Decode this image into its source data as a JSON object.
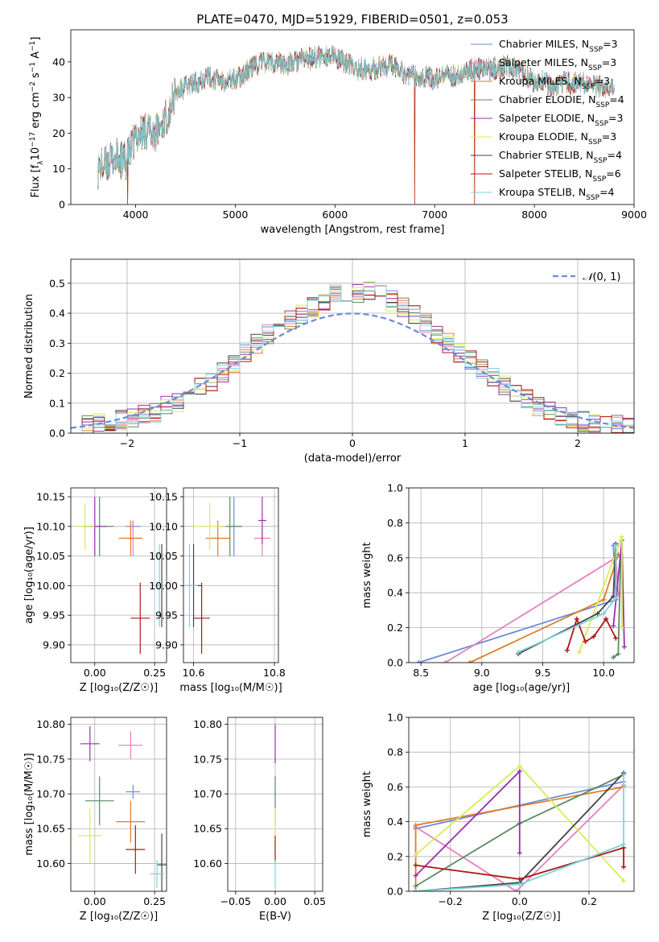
{
  "figure": {
    "title": "PLATE=0470, MJD=51929, FIBERID=0501, z=0.053",
    "colors": [
      "#6a8bd6",
      "#e77fbe",
      "#e07b2a",
      "#5a8a5e",
      "#9b2faa",
      "#d8ec54",
      "#444444",
      "#b01818",
      "#7ad4dc"
    ],
    "series_names": [
      "Chabrier MILES, N$_{SSP}$=3",
      "Salpeter MILES, N$_{SSP}$=3",
      "Kroupa MILES, N$_{SSP}$=3",
      "Chabrier ELODIE, N$_{SSP}$=4",
      "Salpeter ELODIE, N$_{SSP}$=3",
      "Kroupa ELODIE, N$_{SSP}$=3",
      "Chabrier STELIB, N$_{SSP}$=4",
      "Salpeter STELIB, N$_{SSP}$=6",
      "Kroupa STELIB, N$_{SSP}$=4"
    ],
    "series_labels": [
      {
        "pre": "Chabrier MILES, N",
        "sub": "SSP",
        "post": "=3"
      },
      {
        "pre": "Salpeter MILES, N",
        "sub": "SSP",
        "post": "=3"
      },
      {
        "pre": "Kroupa MILES, N",
        "sub": "SSP",
        "post": "=3"
      },
      {
        "pre": "Chabrier ELODIE, N",
        "sub": "SSP",
        "post": "=4"
      },
      {
        "pre": "Salpeter ELODIE, N",
        "sub": "SSP",
        "post": "=3"
      },
      {
        "pre": "Kroupa ELODIE, N",
        "sub": "SSP",
        "post": "=3"
      },
      {
        "pre": "Chabrier STELIB, N",
        "sub": "SSP",
        "post": "=4"
      },
      {
        "pre": "Salpeter STELIB, N",
        "sub": "SSP",
        "post": "=6"
      },
      {
        "pre": "Kroupa STELIB, N",
        "sub": "SSP",
        "post": "=4"
      }
    ]
  },
  "chart_data": [
    {
      "id": "spectrum",
      "type": "line",
      "title": "PLATE=0470, MJD=51929, FIBERID=0501, z=0.053",
      "xlabel": "wavelength [Angstrom, rest frame]",
      "ylabel_parts": [
        "Flux [f",
        "λ",
        "10",
        "−17",
        " erg cm",
        "−2",
        " s",
        "−1",
        " A",
        "−1",
        "]"
      ],
      "xlim": [
        3350,
        9000
      ],
      "ylim": [
        0,
        49
      ],
      "xticks": [
        4000,
        5000,
        6000,
        7000,
        8000,
        9000
      ],
      "yticks": [
        0,
        10,
        20,
        30,
        40
      ],
      "grid": false,
      "legend": "top-right",
      "x": [
        3620,
        3700,
        3800,
        3900,
        3950,
        4000,
        4100,
        4200,
        4300,
        4400,
        4500,
        4600,
        4700,
        4800,
        4900,
        5000,
        5100,
        5200,
        5300,
        5400,
        5500,
        5600,
        5700,
        5800,
        5900,
        6000,
        6100,
        6200,
        6300,
        6400,
        6500,
        6600,
        6700,
        6800,
        6900,
        7000,
        7100,
        7200,
        7300,
        7400,
        7500,
        7600,
        7700,
        7800,
        7900,
        8000,
        8100,
        8200,
        8300,
        8400,
        8500,
        8600,
        8700,
        8800
      ],
      "y": [
        10,
        11,
        13,
        12,
        15,
        19,
        21,
        20,
        24,
        31,
        33,
        34,
        36,
        35,
        35,
        35,
        37,
        39,
        40,
        40,
        39,
        40,
        41,
        41,
        42,
        41,
        40,
        38,
        38,
        38,
        39,
        39,
        37,
        36,
        36,
        35,
        36,
        36,
        37,
        38,
        38,
        38,
        39,
        38,
        37,
        34,
        35,
        32,
        34,
        34,
        34,
        33,
        33,
        34
      ],
      "dips": [
        [
          6800,
          0
        ],
        [
          7400,
          0
        ],
        [
          3920,
          0
        ]
      ]
    },
    {
      "id": "residuals",
      "type": "bar",
      "title": "",
      "xlabel": "(data-model)/error",
      "ylabel": "Normed distribution",
      "xlim": [
        -2.5,
        2.5
      ],
      "ylim": [
        0,
        0.58
      ],
      "xticks": [
        -2,
        -1,
        0,
        1,
        2
      ],
      "yticks": [
        0.0,
        0.1,
        0.2,
        0.3,
        0.4,
        0.5
      ],
      "grid": true,
      "bin_width": 0.1,
      "bin_start": -2.5,
      "values": [
        0.025,
        0.03,
        0.035,
        0.04,
        0.045,
        0.055,
        0.06,
        0.07,
        0.09,
        0.1,
        0.12,
        0.15,
        0.17,
        0.2,
        0.23,
        0.27,
        0.3,
        0.33,
        0.35,
        0.38,
        0.4,
        0.42,
        0.44,
        0.46,
        0.47,
        0.47,
        0.47,
        0.46,
        0.44,
        0.42,
        0.39,
        0.37,
        0.33,
        0.3,
        0.27,
        0.24,
        0.21,
        0.19,
        0.16,
        0.13,
        0.11,
        0.09,
        0.075,
        0.06,
        0.05,
        0.04,
        0.035,
        0.03,
        0.025,
        0.02
      ],
      "normal_curve": {
        "name": "$\\mathcal{N}(0,1)$",
        "mean": 0,
        "sigma": 1
      },
      "legend_text": "(0, 1)",
      "legend": "top-right"
    },
    {
      "id": "age-vs-Z",
      "type": "scatter",
      "xlabel": "Z [log₁₀(Z/Z☉)]",
      "ylabel": "age  [log₁₀(age/yr)]",
      "xlim": [
        -0.1,
        0.3
      ],
      "ylim": [
        9.87,
        10.165
      ],
      "xticks": [
        0.0,
        0.25
      ],
      "yticks": [
        9.9,
        9.95,
        10.0,
        10.05,
        10.1,
        10.15
      ],
      "grid": true,
      "points": [
        {
          "x": 0.16,
          "y": 10.1,
          "xerr": 0.03,
          "yerr": 0.01
        },
        {
          "x": 0.16,
          "y": 10.08,
          "xerr": 0.03,
          "yerr": 0.03
        },
        {
          "x": 0.15,
          "y": 10.08,
          "xerr": 0.05,
          "yerr": 0.03
        },
        {
          "x": 0.02,
          "y": 10.1,
          "xerr": 0.06,
          "yerr": 0.05
        },
        {
          "x": 0.0,
          "y": 10.1,
          "xerr": 0.05,
          "yerr": 0.05
        },
        {
          "x": -0.04,
          "y": 10.1,
          "xerr": 0.04,
          "yerr": 0.04
        },
        {
          "x": 0.28,
          "y": 10.0,
          "xerr": 0.02,
          "yerr": 0.07
        },
        {
          "x": 0.19,
          "y": 9.945,
          "xerr": 0.04,
          "yerr": 0.06
        },
        {
          "x": 0.27,
          "y": 10.0,
          "xerr": 0.03,
          "yerr": 0.07
        }
      ]
    },
    {
      "id": "age-vs-mass",
      "type": "scatter",
      "xlabel": "mass [log₁₀(M/M☉)]",
      "ylabel": "",
      "xlim": [
        10.575,
        10.81
      ],
      "ylim": [
        9.87,
        10.165
      ],
      "xticks": [
        10.6,
        10.8
      ],
      "yticks": [
        9.9,
        9.95,
        10.0,
        10.05,
        10.1,
        10.15
      ],
      "grid": true,
      "points": [
        {
          "x": 10.7,
          "y": 10.1,
          "xerr": 0.02,
          "yerr": 0.05
        },
        {
          "x": 10.77,
          "y": 10.08,
          "xerr": 0.02,
          "yerr": 0.03
        },
        {
          "x": 10.66,
          "y": 10.08,
          "xerr": 0.03,
          "yerr": 0.03
        },
        {
          "x": 10.69,
          "y": 10.1,
          "xerr": 0.03,
          "yerr": 0.05
        },
        {
          "x": 10.77,
          "y": 10.11,
          "xerr": 0.01,
          "yerr": 0.04
        },
        {
          "x": 10.64,
          "y": 10.1,
          "xerr": 0.04,
          "yerr": 0.04
        },
        {
          "x": 10.6,
          "y": 10.0,
          "xerr": 0.02,
          "yerr": 0.07
        },
        {
          "x": 10.62,
          "y": 9.945,
          "xerr": 0.02,
          "yerr": 0.06
        },
        {
          "x": 10.59,
          "y": 10.0,
          "xerr": 0.02,
          "yerr": 0.07
        }
      ]
    },
    {
      "id": "weight-vs-age",
      "type": "line",
      "xlabel": "age  [log₁₀(age/yr)]",
      "ylabel": "mass weight",
      "xlim": [
        8.4,
        10.25
      ],
      "ylim": [
        0,
        1.0
      ],
      "xticks": [
        8.5,
        9.0,
        9.5,
        10.0
      ],
      "yticks": [
        0.0,
        0.2,
        0.4,
        0.6,
        0.8,
        1.0
      ],
      "grid": true,
      "series": [
        {
          "x": [
            8.48,
            10.1,
            10.08
          ],
          "y": [
            0.0,
            0.36,
            0.67
          ]
        },
        {
          "x": [
            8.7,
            10.1,
            10.12
          ],
          "y": [
            0.0,
            0.6,
            0.39
          ]
        },
        {
          "x": [
            8.9,
            10.0,
            10.12
          ],
          "y": [
            0.0,
            0.36,
            0.62
          ]
        },
        {
          "x": [
            10.08,
            10.12,
            10.14
          ],
          "y": [
            0.03,
            0.05,
            0.61
          ]
        },
        {
          "x": [
            10.08,
            10.15,
            10.17
          ],
          "y": [
            0.21,
            0.7,
            0.09
          ]
        },
        {
          "x": [
            9.8,
            10.15,
            10.15
          ],
          "y": [
            0.06,
            0.72,
            0.2
          ]
        },
        {
          "x": [
            9.3,
            9.95,
            10.08,
            10.1
          ],
          "y": [
            0.05,
            0.28,
            0.38,
            0.68
          ]
        },
        {
          "x": [
            9.7,
            9.78,
            9.85,
            9.92,
            10.02,
            10.1
          ],
          "y": [
            0.07,
            0.25,
            0.12,
            0.15,
            0.25,
            0.14
          ]
        },
        {
          "x": [
            9.3,
            10.0,
            10.1,
            10.1
          ],
          "y": [
            0.06,
            0.28,
            0.37,
            0.67
          ]
        }
      ]
    },
    {
      "id": "mass-vs-Z",
      "type": "scatter",
      "xlabel": "Z [log₁₀(Z/Z☉)]",
      "ylabel": "mass [log₁₀(M/M☉)]",
      "xlim": [
        -0.1,
        0.3
      ],
      "ylim": [
        10.56,
        10.81
      ],
      "xticks": [
        0.0,
        0.25
      ],
      "yticks": [
        10.6,
        10.65,
        10.7,
        10.75,
        10.8
      ],
      "grid": true,
      "points": [
        {
          "x": 0.16,
          "y": 10.703,
          "xerr": 0.03,
          "yerr": 0.01
        },
        {
          "x": 0.15,
          "y": 10.77,
          "xerr": 0.05,
          "yerr": 0.02
        },
        {
          "x": 0.15,
          "y": 10.66,
          "xerr": 0.06,
          "yerr": 0.03
        },
        {
          "x": 0.02,
          "y": 10.69,
          "xerr": 0.06,
          "yerr": 0.035
        },
        {
          "x": -0.02,
          "y": 10.772,
          "xerr": 0.04,
          "yerr": 0.025
        },
        {
          "x": -0.02,
          "y": 10.64,
          "xerr": 0.05,
          "yerr": 0.04
        },
        {
          "x": 0.28,
          "y": 10.598,
          "xerr": 0.02,
          "yerr": 0.045
        },
        {
          "x": 0.17,
          "y": 10.62,
          "xerr": 0.04,
          "yerr": 0.035
        },
        {
          "x": 0.26,
          "y": 10.585,
          "xerr": 0.03,
          "yerr": 0.02
        }
      ]
    },
    {
      "id": "mass-vs-ebv",
      "type": "scatter",
      "xlabel": "E(B-V)",
      "ylabel": "",
      "xlim": [
        -0.06,
        0.06
      ],
      "ylim": [
        10.56,
        10.81
      ],
      "xticks": [
        -0.05,
        0.0,
        0.05
      ],
      "yticks": [
        10.6,
        10.65,
        10.7,
        10.75,
        10.8
      ],
      "grid": true,
      "points": [
        {
          "x": 0.0,
          "y": 10.772,
          "xerr": 0.0,
          "yerr": 0.028
        },
        {
          "x": 0.0,
          "y": 10.69,
          "xerr": 0.0,
          "yerr": 0.035
        },
        {
          "x": 0.0,
          "y": 10.64,
          "xerr": 0.0,
          "yerr": 0.04
        },
        {
          "x": 0.0,
          "y": 10.62,
          "xerr": 0.0,
          "yerr": 0.02
        },
        {
          "x": 0.0,
          "y": 10.585,
          "xerr": 0.0,
          "yerr": 0.02
        }
      ]
    },
    {
      "id": "weight-vs-Z",
      "type": "line",
      "xlabel": "Z [log₁₀(Z/Z☉)]",
      "ylabel": "mass weight",
      "xlim": [
        -0.32,
        0.33
      ],
      "ylim": [
        0,
        1.0
      ],
      "xticks": [
        -0.2,
        0.0,
        0.2
      ],
      "yticks": [
        0.0,
        0.2,
        0.4,
        0.6,
        0.8,
        1.0
      ],
      "grid": true,
      "series": [
        {
          "x": [
            -0.3,
            0.3
          ],
          "y": [
            0.36,
            0.63
          ]
        },
        {
          "x": [
            -0.3,
            -0.01,
            0.3
          ],
          "y": [
            0.37,
            0.0,
            0.61
          ]
        },
        {
          "x": [
            -0.3,
            -0.3,
            0.3
          ],
          "y": [
            0.0,
            0.38,
            0.6
          ]
        },
        {
          "x": [
            -0.3,
            0.0,
            0.3
          ],
          "y": [
            0.03,
            0.39,
            0.67
          ]
        },
        {
          "x": [
            -0.3,
            0.0,
            0.0
          ],
          "y": [
            0.09,
            0.69,
            0.22
          ]
        },
        {
          "x": [
            -0.3,
            0.0,
            0.3
          ],
          "y": [
            0.21,
            0.72,
            0.06
          ]
        },
        {
          "x": [
            -0.3,
            0.0,
            0.3
          ],
          "y": [
            0.0,
            0.05,
            0.68
          ]
        },
        {
          "x": [
            -0.3,
            0.0,
            0.3,
            0.3
          ],
          "y": [
            0.15,
            0.07,
            0.25,
            0.14
          ]
        },
        {
          "x": [
            -0.3,
            0.0,
            0.3,
            0.3
          ],
          "y": [
            0.0,
            0.04,
            0.27,
            0.67
          ]
        }
      ]
    }
  ]
}
